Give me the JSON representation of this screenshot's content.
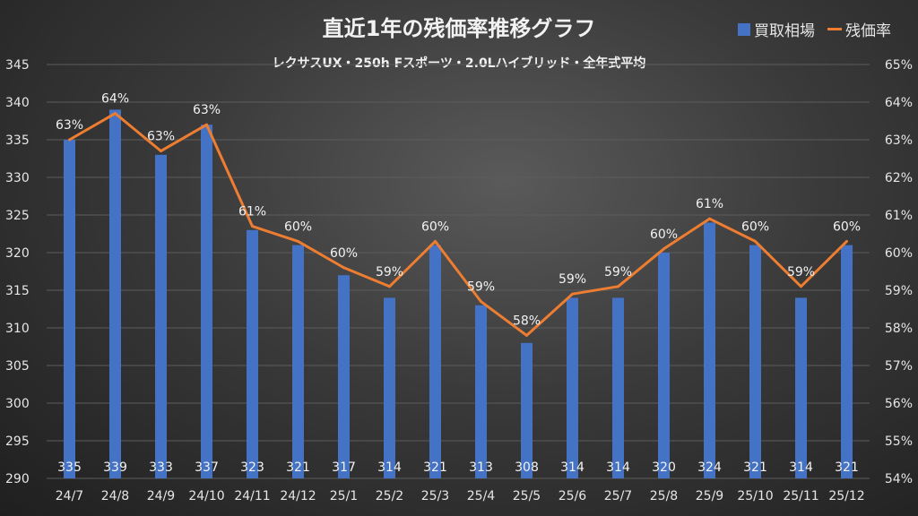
{
  "chart_data": {
    "type": "bar+line",
    "title": "直近1年の残価率推移グラフ",
    "subtitle": "レクサスUX・250h Fスポーツ・2.0Lハイブリッド・全年式平均",
    "categories": [
      "24/7",
      "24/8",
      "24/9",
      "24/10",
      "24/11",
      "24/12",
      "25/1",
      "25/2",
      "25/3",
      "25/4",
      "25/5",
      "25/6",
      "25/7",
      "25/8",
      "25/9",
      "25/10",
      "25/11",
      "25/12"
    ],
    "series": [
      {
        "name": "買取相場",
        "type": "bar",
        "axis": "left",
        "color": "#4472C4",
        "values": [
          335,
          339,
          333,
          337,
          323,
          321,
          317,
          314,
          321,
          313,
          308,
          314,
          314,
          320,
          324,
          321,
          314,
          321
        ]
      },
      {
        "name": "残価率",
        "type": "line",
        "axis": "right",
        "color": "#ED7D31",
        "values": [
          63.0,
          63.7,
          62.7,
          63.4,
          60.7,
          60.3,
          59.6,
          59.1,
          60.3,
          58.7,
          57.8,
          58.9,
          59.1,
          60.1,
          60.9,
          60.3,
          59.1,
          60.3
        ],
        "labels": [
          "63%",
          "64%",
          "63%",
          "63%",
          "61%",
          "60%",
          "60%",
          "59%",
          "60%",
          "59%",
          "58%",
          "59%",
          "59%",
          "60%",
          "61%",
          "60%",
          "59%",
          "60%"
        ]
      }
    ],
    "left_axis": {
      "range": [
        290,
        345
      ],
      "step": 5,
      "ticks": [
        "290",
        "295",
        "300",
        "305",
        "310",
        "315",
        "320",
        "325",
        "330",
        "335",
        "340",
        "345"
      ]
    },
    "right_axis": {
      "range": [
        54,
        65
      ],
      "step": 1,
      "ticks": [
        "54%",
        "55%",
        "56%",
        "57%",
        "58%",
        "59%",
        "60%",
        "61%",
        "62%",
        "63%",
        "64%",
        "65%"
      ]
    },
    "grid": true,
    "legend": "top-right"
  }
}
